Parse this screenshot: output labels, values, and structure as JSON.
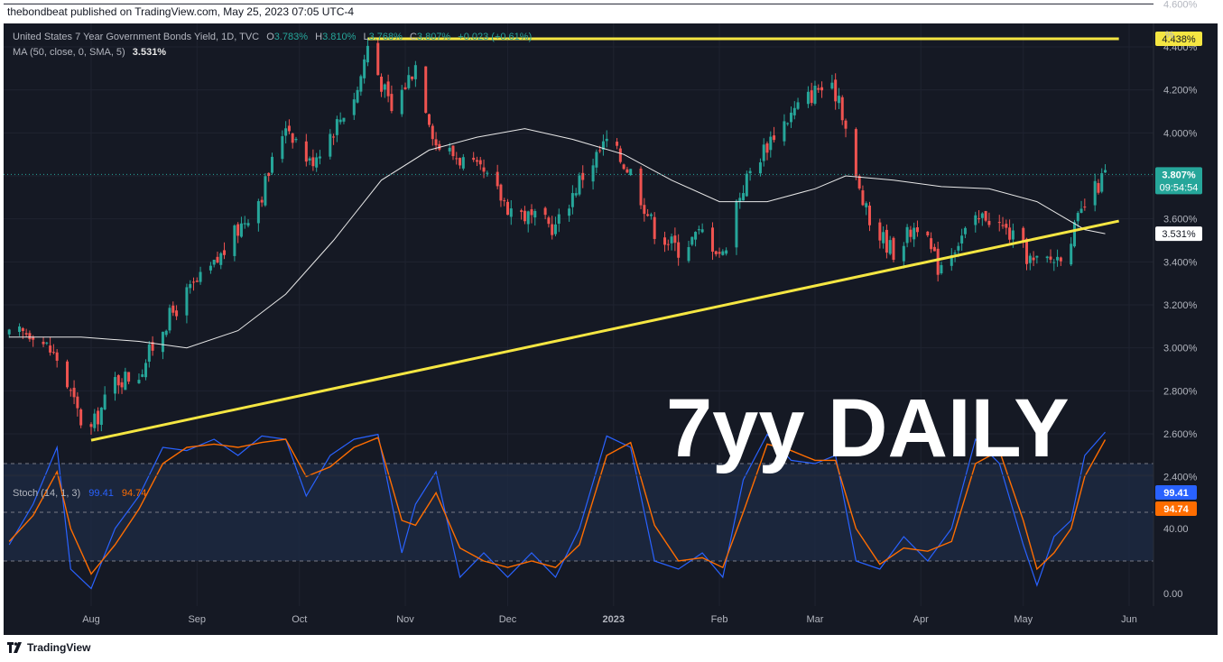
{
  "header": {
    "published": "thebondbeat published on TradingView.com, May 25, 2023 07:05 UTC-4"
  },
  "footer": {
    "brand": "TradingView"
  },
  "legend": {
    "symbol": "United States 7 Year Government Bonds Yield, 1D, TVC",
    "o_label": "O",
    "o_value": "3.783%",
    "h_label": "H",
    "h_value": "3.810%",
    "l_label": "L",
    "l_value": "3.768%",
    "c_label": "C",
    "c_value": "3.807%",
    "change": "+0.023 (+0.61%)",
    "ma_label": "MA (50, close, 0, SMA, 5)",
    "ma_value": "3.531%"
  },
  "stoch_legend": {
    "label": "Stoch (14, 1, 3)",
    "k": "99.41",
    "d": "94.74"
  },
  "overlay_text": "7yy DAILY",
  "colors": {
    "background": "#151924",
    "up": "#26a69a",
    "down": "#ef5350",
    "ma": "#e8e8e8",
    "trendline": "#f5e642",
    "stoch_k": "#2962ff",
    "stoch_d": "#ff6d00"
  },
  "chart_data": [
    {
      "type": "candlestick",
      "title": "United States 7 Year Government Bonds Yield, 1D, TVC",
      "y_unit_label": "%",
      "y_ticks": [
        "4.600%",
        "4.400%",
        "4.200%",
        "4.000%",
        "3.800%",
        "3.600%",
        "3.400%",
        "3.200%",
        "3.000%",
        "2.800%",
        "2.600%",
        "2.400%"
      ],
      "ylim": [
        2.4,
        4.6
      ],
      "x_ticks": [
        "Aug",
        "Sep",
        "Oct",
        "Nov",
        "Dec",
        "2023",
        "Feb",
        "Mar",
        "Apr",
        "May",
        "Jun"
      ],
      "price_labels": [
        {
          "text": "4.438%",
          "value": 4.438,
          "style": "yellow"
        },
        {
          "text": "3.807%",
          "value": 3.807,
          "style": "green",
          "sub": "09:54:54"
        },
        {
          "text": "3.531%",
          "value": 3.531,
          "style": "white"
        }
      ],
      "ohlc_last": {
        "open": 3.783,
        "high": 3.81,
        "low": 3.768,
        "close": 3.807
      },
      "close_path": [
        [
          "2022-07-08",
          3.05
        ],
        [
          "2022-07-15",
          3.08
        ],
        [
          "2022-07-22",
          2.95
        ],
        [
          "2022-07-29",
          2.66
        ],
        [
          "2022-08-01",
          2.62
        ],
        [
          "2022-08-08",
          2.85
        ],
        [
          "2022-08-15",
          2.88
        ],
        [
          "2022-08-22",
          3.1
        ],
        [
          "2022-08-29",
          3.25
        ],
        [
          "2022-09-06",
          3.38
        ],
        [
          "2022-09-13",
          3.55
        ],
        [
          "2022-09-20",
          3.72
        ],
        [
          "2022-09-27",
          4.05
        ],
        [
          "2022-10-04",
          3.86
        ],
        [
          "2022-10-11",
          4.02
        ],
        [
          "2022-10-18",
          4.2
        ],
        [
          "2022-10-21",
          4.41
        ],
        [
          "2022-10-28",
          4.1
        ],
        [
          "2022-11-04",
          4.32
        ],
        [
          "2022-11-10",
          3.95
        ],
        [
          "2022-11-17",
          3.88
        ],
        [
          "2022-11-24",
          3.8
        ],
        [
          "2022-12-01",
          3.66
        ],
        [
          "2022-12-08",
          3.6
        ],
        [
          "2022-12-15",
          3.56
        ],
        [
          "2022-12-22",
          3.78
        ],
        [
          "2022-12-30",
          3.96
        ],
        [
          "2023-01-06",
          3.82
        ],
        [
          "2023-01-13",
          3.55
        ],
        [
          "2023-01-20",
          3.46
        ],
        [
          "2023-01-27",
          3.54
        ],
        [
          "2023-02-02",
          3.43
        ],
        [
          "2023-02-06",
          3.68
        ],
        [
          "2023-02-10",
          3.82
        ],
        [
          "2023-02-17",
          4.0
        ],
        [
          "2023-02-24",
          4.12
        ],
        [
          "2023-03-02",
          4.21
        ],
        [
          "2023-03-08",
          4.18
        ],
        [
          "2023-03-13",
          3.78
        ],
        [
          "2023-03-17",
          3.58
        ],
        [
          "2023-03-24",
          3.45
        ],
        [
          "2023-03-31",
          3.58
        ],
        [
          "2023-04-06",
          3.38
        ],
        [
          "2023-04-13",
          3.52
        ],
        [
          "2023-04-20",
          3.62
        ],
        [
          "2023-04-27",
          3.53
        ],
        [
          "2023-05-04",
          3.39
        ],
        [
          "2023-05-11",
          3.42
        ],
        [
          "2023-05-16",
          3.55
        ],
        [
          "2023-05-19",
          3.66
        ],
        [
          "2023-05-25",
          3.807
        ]
      ],
      "series": [
        {
          "name": "MA (50, close, 0, SMA, 5)",
          "points": [
            [
              "2022-07-08",
              3.05
            ],
            [
              "2022-07-29",
              3.05
            ],
            [
              "2022-08-15",
              3.03
            ],
            [
              "2022-08-29",
              3.0
            ],
            [
              "2022-09-13",
              3.08
            ],
            [
              "2022-09-27",
              3.25
            ],
            [
              "2022-10-11",
              3.5
            ],
            [
              "2022-10-25",
              3.78
            ],
            [
              "2022-11-08",
              3.92
            ],
            [
              "2022-11-22",
              3.98
            ],
            [
              "2022-12-06",
              4.02
            ],
            [
              "2022-12-20",
              3.97
            ],
            [
              "2023-01-04",
              3.9
            ],
            [
              "2023-01-18",
              3.78
            ],
            [
              "2023-02-01",
              3.68
            ],
            [
              "2023-02-15",
              3.68
            ],
            [
              "2023-03-01",
              3.74
            ],
            [
              "2023-03-10",
              3.8
            ],
            [
              "2023-03-24",
              3.78
            ],
            [
              "2023-04-07",
              3.75
            ],
            [
              "2023-04-21",
              3.74
            ],
            [
              "2023-05-05",
              3.68
            ],
            [
              "2023-05-19",
              3.55
            ],
            [
              "2023-05-25",
              3.531
            ]
          ]
        },
        {
          "name": "resistance",
          "points": [
            [
              "2022-10-21",
              4.438
            ],
            [
              "2023-05-29",
              4.438
            ]
          ]
        },
        {
          "name": "support",
          "points": [
            [
              "2022-08-01",
              2.57
            ],
            [
              "2023-05-29",
              3.59
            ]
          ]
        }
      ]
    },
    {
      "type": "line",
      "title": "Stoch (14, 1, 3)",
      "ylim": [
        0,
        100
      ],
      "y_ticks": [
        "40.00",
        "0.00"
      ],
      "bands": {
        "upper": 80,
        "middle": 50,
        "lower": 20
      },
      "last_labels": [
        {
          "text": "99.41",
          "value": 99.41,
          "color": "#2962ff"
        },
        {
          "text": "94.74",
          "value": 94.74,
          "color": "#ff6d00"
        }
      ],
      "series": [
        {
          "name": "K",
          "points": [
            [
              "2022-07-08",
              30
            ],
            [
              "2022-07-15",
              55
            ],
            [
              "2022-07-22",
              90
            ],
            [
              "2022-07-26",
              15
            ],
            [
              "2022-08-01",
              3
            ],
            [
              "2022-08-08",
              40
            ],
            [
              "2022-08-15",
              60
            ],
            [
              "2022-08-22",
              90
            ],
            [
              "2022-08-29",
              88
            ],
            [
              "2022-09-06",
              95
            ],
            [
              "2022-09-13",
              85
            ],
            [
              "2022-09-20",
              97
            ],
            [
              "2022-09-27",
              95
            ],
            [
              "2022-10-03",
              60
            ],
            [
              "2022-10-10",
              85
            ],
            [
              "2022-10-17",
              95
            ],
            [
              "2022-10-24",
              98
            ],
            [
              "2022-10-31",
              25
            ],
            [
              "2022-11-04",
              55
            ],
            [
              "2022-11-10",
              75
            ],
            [
              "2022-11-17",
              10
            ],
            [
              "2022-11-24",
              25
            ],
            [
              "2022-12-01",
              10
            ],
            [
              "2022-12-08",
              25
            ],
            [
              "2022-12-15",
              10
            ],
            [
              "2022-12-22",
              40
            ],
            [
              "2022-12-30",
              97
            ],
            [
              "2023-01-06",
              90
            ],
            [
              "2023-01-13",
              20
            ],
            [
              "2023-01-20",
              15
            ],
            [
              "2023-01-27",
              25
            ],
            [
              "2023-02-02",
              10
            ],
            [
              "2023-02-08",
              70
            ],
            [
              "2023-02-15",
              98
            ],
            [
              "2023-02-22",
              82
            ],
            [
              "2023-03-01",
              80
            ],
            [
              "2023-03-07",
              85
            ],
            [
              "2023-03-13",
              20
            ],
            [
              "2023-03-20",
              15
            ],
            [
              "2023-03-27",
              35
            ],
            [
              "2023-04-03",
              20
            ],
            [
              "2023-04-10",
              40
            ],
            [
              "2023-04-17",
              95
            ],
            [
              "2023-04-24",
              80
            ],
            [
              "2023-05-01",
              30
            ],
            [
              "2023-05-05",
              5
            ],
            [
              "2023-05-10",
              35
            ],
            [
              "2023-05-15",
              45
            ],
            [
              "2023-05-19",
              85
            ],
            [
              "2023-05-25",
              99.41
            ]
          ]
        },
        {
          "name": "D",
          "points": [
            [
              "2022-07-08",
              32
            ],
            [
              "2022-07-15",
              48
            ],
            [
              "2022-07-22",
              75
            ],
            [
              "2022-07-26",
              40
            ],
            [
              "2022-08-01",
              12
            ],
            [
              "2022-08-08",
              30
            ],
            [
              "2022-08-15",
              52
            ],
            [
              "2022-08-22",
              80
            ],
            [
              "2022-08-29",
              90
            ],
            [
              "2022-09-06",
              92
            ],
            [
              "2022-09-13",
              90
            ],
            [
              "2022-09-20",
              93
            ],
            [
              "2022-09-27",
              95
            ],
            [
              "2022-10-03",
              72
            ],
            [
              "2022-10-10",
              78
            ],
            [
              "2022-10-17",
              90
            ],
            [
              "2022-10-24",
              96
            ],
            [
              "2022-10-31",
              45
            ],
            [
              "2022-11-04",
              42
            ],
            [
              "2022-11-10",
              62
            ],
            [
              "2022-11-17",
              28
            ],
            [
              "2022-11-24",
              20
            ],
            [
              "2022-12-01",
              16
            ],
            [
              "2022-12-08",
              20
            ],
            [
              "2022-12-15",
              16
            ],
            [
              "2022-12-22",
              30
            ],
            [
              "2022-12-30",
              85
            ],
            [
              "2023-01-06",
              93
            ],
            [
              "2023-01-13",
              42
            ],
            [
              "2023-01-20",
              20
            ],
            [
              "2023-01-27",
              22
            ],
            [
              "2023-02-02",
              16
            ],
            [
              "2023-02-08",
              50
            ],
            [
              "2023-02-15",
              92
            ],
            [
              "2023-02-22",
              88
            ],
            [
              "2023-03-01",
              82
            ],
            [
              "2023-03-07",
              82
            ],
            [
              "2023-03-13",
              40
            ],
            [
              "2023-03-20",
              18
            ],
            [
              "2023-03-27",
              28
            ],
            [
              "2023-04-03",
              26
            ],
            [
              "2023-04-10",
              32
            ],
            [
              "2023-04-17",
              80
            ],
            [
              "2023-04-24",
              88
            ],
            [
              "2023-05-01",
              45
            ],
            [
              "2023-05-05",
              15
            ],
            [
              "2023-05-10",
              25
            ],
            [
              "2023-05-15",
              40
            ],
            [
              "2023-05-19",
              72
            ],
            [
              "2023-05-25",
              94.74
            ]
          ]
        }
      ]
    }
  ]
}
